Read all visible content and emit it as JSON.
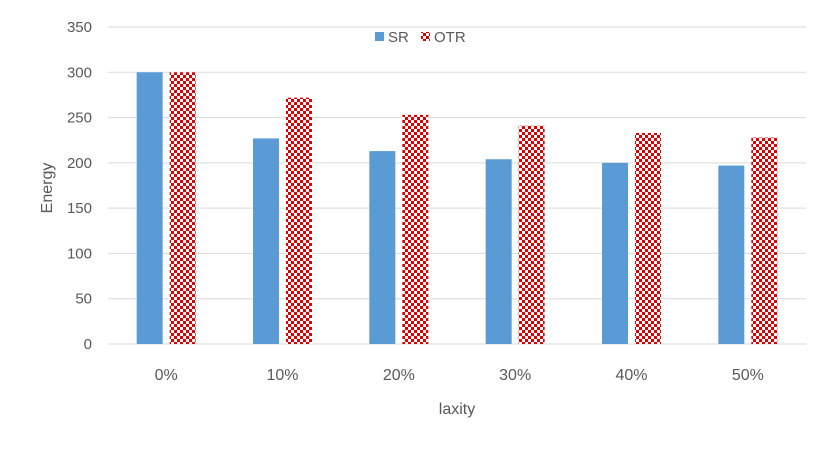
{
  "chart_data": {
    "type": "bar",
    "title": "",
    "xlabel": "laxity",
    "ylabel": "Energy",
    "categories": [
      "0%",
      "10%",
      "20%",
      "30%",
      "40%",
      "50%"
    ],
    "ylim": [
      0,
      350
    ],
    "yticks": [
      0,
      50,
      100,
      150,
      200,
      250,
      300,
      350
    ],
    "grid": true,
    "legend_position": "top-center",
    "series": [
      {
        "name": "SR",
        "values": [
          300,
          227,
          213,
          204,
          200,
          197
        ],
        "color": "#5B9BD5",
        "fill": "solid"
      },
      {
        "name": "OTR",
        "values": [
          300,
          272,
          253,
          241,
          233,
          228
        ],
        "color": "#E00000",
        "fill": "checkerboard"
      }
    ]
  }
}
